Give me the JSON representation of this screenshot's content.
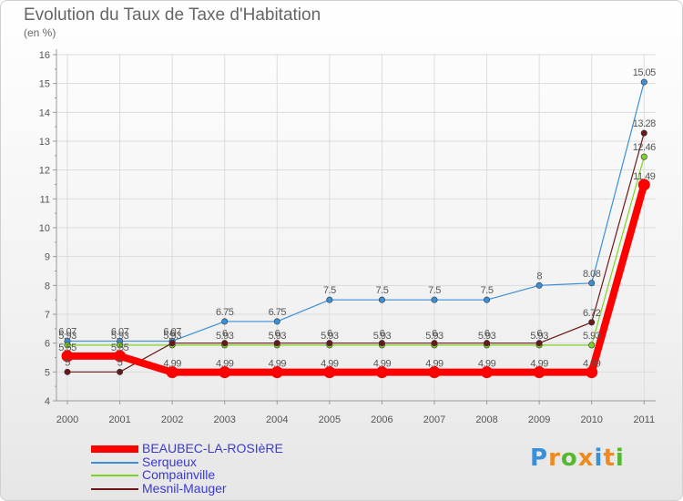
{
  "title": "Evolution du Taux de Taxe d'Habitation",
  "subtitle": "(en %)",
  "logo": {
    "text": "Proxiti",
    "colors": [
      "#3b8fd6",
      "#ee8a1e",
      "#55b82f",
      "#ee8a1e",
      "#3b8fd6",
      "#ee8a1e",
      "#55b82f"
    ]
  },
  "chart_data": {
    "type": "line",
    "title": "Evolution du Taux de Taxe d'Habitation",
    "subtitle": "(en %)",
    "categories": [
      "2000",
      "2001",
      "2002",
      "2003",
      "2004",
      "2005",
      "2006",
      "2007",
      "2008",
      "2009",
      "2010",
      "2011"
    ],
    "ylim": [
      4,
      16
    ],
    "yticks": [
      "4",
      "5",
      "6",
      "7",
      "8",
      "9",
      "10",
      "11",
      "12",
      "13",
      "14",
      "15",
      "16"
    ],
    "grid": true,
    "legend_position": "bottom-left",
    "series": [
      {
        "name": "BEAUBEC-LA-ROSIèRE",
        "color": "#ff0000",
        "values": [
          5.55,
          5.55,
          4.99,
          4.99,
          4.99,
          4.99,
          4.99,
          4.99,
          4.99,
          4.99,
          4.99,
          11.49
        ],
        "labels": [
          "5.55",
          "5.55",
          "4.99",
          "4.99",
          "4.99",
          "4.99",
          "4.99",
          "4.99",
          "4.99",
          "4.99",
          "4.99",
          "11.49"
        ]
      },
      {
        "name": "Serqueux",
        "color": "#3b8fd6",
        "values": [
          6.07,
          6.07,
          6.07,
          6.75,
          6.75,
          7.5,
          7.5,
          7.5,
          7.5,
          8,
          8.08,
          15.05
        ],
        "labels": [
          "6.07",
          "6.07",
          "6.07",
          "6.75",
          "6.75",
          "7.5",
          "7.5",
          "7.5",
          "7.5",
          "8",
          "8.08",
          "15.05"
        ]
      },
      {
        "name": "Compainville",
        "color": "#7ed321",
        "values": [
          5.93,
          5.93,
          5.93,
          5.93,
          5.93,
          5.93,
          5.93,
          5.93,
          5.93,
          5.93,
          5.93,
          12.46
        ],
        "labels": [
          "5.93",
          "5.93",
          "5.93",
          "5.93",
          "5.93",
          "5.93",
          "5.93",
          "5.93",
          "5.93",
          "5.93",
          "5.93",
          "12.46"
        ]
      },
      {
        "name": "Mesnil-Mauger",
        "color": "#6b1818",
        "values": [
          5,
          5,
          6,
          6,
          6,
          6,
          6,
          6,
          6,
          6,
          6.72,
          13.28
        ],
        "labels": [
          "5",
          "5",
          "6",
          "6",
          "6",
          "6",
          "6",
          "6",
          "6",
          "6",
          "6.72",
          "13.28"
        ]
      }
    ]
  }
}
